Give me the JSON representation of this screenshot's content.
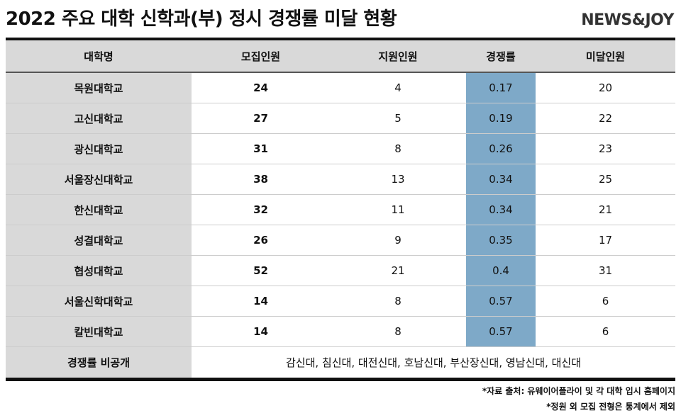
{
  "header": {
    "title": "2022 주요 대학 신학과(부) 정시 경쟁률 미달 현황",
    "logo": "NEWS&JOY"
  },
  "table": {
    "columns": [
      "대학명",
      "모집인원",
      "지원인원",
      "경쟁률",
      "미달인원"
    ],
    "rows": [
      [
        "목원대학교",
        24,
        4,
        0.17,
        20
      ],
      [
        "고신대학교",
        27,
        5,
        0.19,
        22
      ],
      [
        "광신대학교",
        31,
        8,
        0.26,
        23
      ],
      [
        "서울장신대학교",
        38,
        13,
        0.34,
        25
      ],
      [
        "한신대학교",
        32,
        11,
        0.34,
        21
      ],
      [
        "성결대학교",
        26,
        9,
        0.35,
        17
      ],
      [
        "협성대학교",
        52,
        21,
        0.4,
        31
      ],
      [
        "서울신학대학교",
        14,
        8,
        0.57,
        6
      ],
      [
        "칼빈대학교",
        14,
        8,
        0.57,
        6
      ]
    ],
    "undisclosed": {
      "label": "경쟁률 비공개",
      "schools": "감신대, 침신대, 대전신대, 호남신대, 부산장신대, 영남신대, 대신대"
    }
  },
  "footnotes": [
    "*자료 출처: 유웨이어플라이 및 각 대학 입시 홈페이지",
    "*정원 외 모집 전형은 통계에서 제외"
  ]
}
